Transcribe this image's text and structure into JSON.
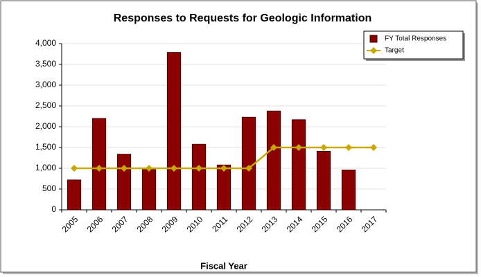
{
  "chart_data": {
    "type": "bar",
    "title": "Responses to Requests for Geologic Information",
    "x_label": "Fiscal Year",
    "categories": [
      "2005",
      "2006",
      "2007",
      "2008",
      "2009",
      "2010",
      "2011",
      "2012",
      "2013",
      "2014",
      "2015",
      "2016",
      "2017"
    ],
    "series": [
      {
        "name": "FY Total Responses",
        "type": "bar",
        "color": "#8b0000",
        "values": [
          720,
          2200,
          1340,
          970,
          3790,
          1580,
          1080,
          2230,
          2380,
          2170,
          1410,
          960,
          null
        ]
      },
      {
        "name": "Target",
        "type": "line",
        "color": "#c8a800",
        "values": [
          1000,
          1000,
          1000,
          1000,
          1000,
          1000,
          1000,
          1000,
          1500,
          1500,
          1500,
          1500,
          1500
        ]
      }
    ],
    "ylim": [
      0,
      4000
    ],
    "yticks": [
      0,
      500,
      {
        "value": 1000,
        "label": "1,000"
      },
      {
        "value": 1500,
        "label": "1,500"
      },
      {
        "value": 2000,
        "label": "2,000"
      },
      {
        "value": 2500,
        "label": "2,500"
      },
      {
        "value": 3000,
        "label": "3,000"
      },
      {
        "value": 3500,
        "label": "3,500"
      },
      {
        "value": 4000,
        "label": "4,000"
      }
    ],
    "grid": true,
    "legend": "top-right"
  }
}
